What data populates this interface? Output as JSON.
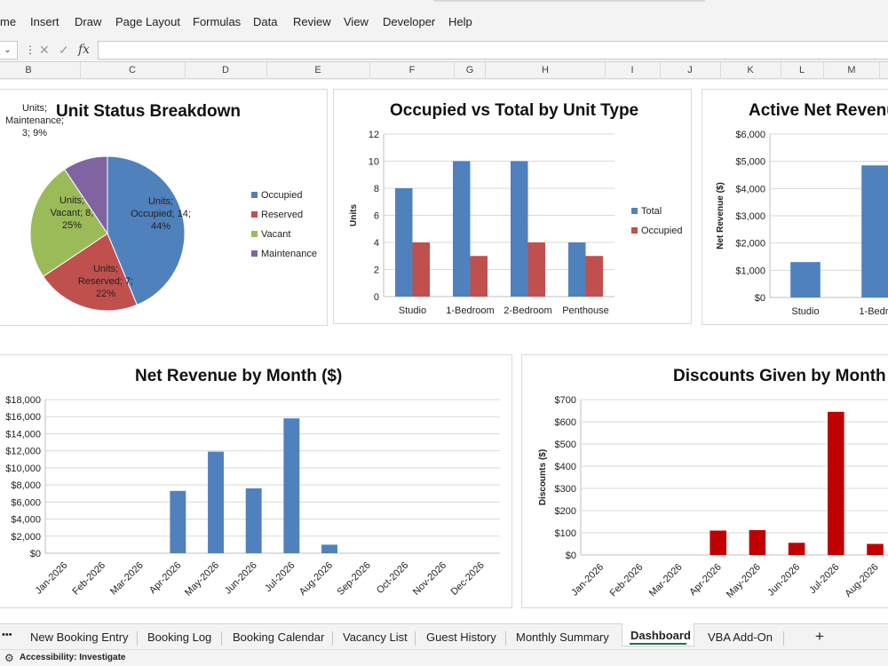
{
  "menu": [
    "me",
    "Insert",
    "Draw",
    "Page Layout",
    "Formulas",
    "Data",
    "Review",
    "View",
    "Developer",
    "Help"
  ],
  "formula_bar": {
    "fx_label": "fx",
    "value": ""
  },
  "columns": [
    "B",
    "C",
    "D",
    "E",
    "F",
    "G",
    "H",
    "I",
    "J",
    "K",
    "L",
    "M"
  ],
  "charts": {
    "unit_status": {
      "title": "Unit Status Breakdown",
      "chart_data": {
        "type": "pie",
        "title": "Unit Status Breakdown",
        "slices": [
          {
            "name": "Occupied",
            "value": 14,
            "percent": "44%",
            "color": "#4F81BD",
            "label": [
              "Units;",
              "Occupied; 14;",
              "44%"
            ]
          },
          {
            "name": "Reserved",
            "value": 7,
            "percent": "22%",
            "color": "#C0504D",
            "label": [
              "Units;",
              "Reserved; 7;",
              "22%"
            ]
          },
          {
            "name": "Vacant",
            "value": 8,
            "percent": "25%",
            "color": "#9BBB59",
            "label": [
              "Units;",
              "Vacant; 8;",
              "25%"
            ]
          },
          {
            "name": "Maintenance",
            "value": 3,
            "percent": "9%",
            "color": "#8064A2",
            "label": [
              "Units;",
              "Maintenance;",
              "3; 9%"
            ]
          }
        ],
        "legend_position": "right"
      }
    },
    "occupied_total": {
      "title": "Occupied vs Total by Unit Type",
      "chart_data": {
        "type": "bar",
        "title": "Occupied vs Total by Unit Type",
        "categories": [
          "Studio",
          "1-Bedroom",
          "2-Bedroom",
          "Penthouse"
        ],
        "series": [
          {
            "name": "Total",
            "values": [
              8,
              10,
              10,
              4
            ],
            "color": "#4F81BD"
          },
          {
            "name": "Occupied",
            "values": [
              4,
              3,
              4,
              3
            ],
            "color": "#C0504D"
          }
        ],
        "ylabel": "Units",
        "ylim": [
          0,
          12
        ],
        "yticks": [
          "0",
          "2",
          "4",
          "6",
          "8",
          "10",
          "12"
        ],
        "grid": true,
        "legend_position": "right"
      }
    },
    "active_net_revenue": {
      "title": "Active Net Revenu",
      "chart_data": {
        "type": "bar",
        "title": "Active Net Revenu",
        "categories": [
          "Studio",
          "1-Bedro"
        ],
        "values": [
          1300,
          4850
        ],
        "color": "#4F81BD",
        "ylabel": "Net Revenue ($)",
        "ylim": [
          0,
          6000
        ],
        "yticks": [
          "$0",
          "$1,000",
          "$2,000",
          "$3,000",
          "$4,000",
          "$5,000",
          "$6,000"
        ],
        "grid": true
      }
    },
    "net_revenue_month": {
      "title": "Net Revenue by Month ($)",
      "chart_data": {
        "type": "bar",
        "title": "Net Revenue by Month ($)",
        "categories": [
          "Jan-2026",
          "Feb-2026",
          "Mar-2026",
          "Apr-2026",
          "May-2026",
          "Jun-2026",
          "Jul-2026",
          "Aug-2026",
          "Sep-2026",
          "Oct-2026",
          "Nov-2026",
          "Dec-2026"
        ],
        "values": [
          0,
          0,
          0,
          7300,
          11900,
          7600,
          15800,
          1000,
          0,
          0,
          0,
          0
        ],
        "color": "#4F81BD",
        "ylim": [
          0,
          18000
        ],
        "yticks": [
          "$0",
          "$2,000",
          "$4,000",
          "$6,000",
          "$8,000",
          "$10,000",
          "$12,000",
          "$14,000",
          "$16,000",
          "$18,000"
        ],
        "grid": true
      }
    },
    "discounts_month": {
      "title": "Discounts Given by Month",
      "chart_data": {
        "type": "bar",
        "title": "Discounts Given by Month",
        "categories": [
          "Jan-2026",
          "Feb-2026",
          "Mar-2026",
          "Apr-2026",
          "May-2026",
          "Jun-2026",
          "Jul-2026",
          "Aug-2026",
          "S"
        ],
        "values": [
          0,
          0,
          0,
          110,
          112,
          55,
          645,
          50,
          0
        ],
        "color": "#C00000",
        "ylabel": "Discounts ($)",
        "ylim": [
          0,
          700
        ],
        "yticks": [
          "$0",
          "$100",
          "$200",
          "$300",
          "$400",
          "$500",
          "$600",
          "$700"
        ],
        "grid": true
      }
    }
  },
  "sheet_tabs": [
    "New Booking Entry",
    "Booking Log",
    "Booking Calendar",
    "Vacancy List",
    "Guest History",
    "Monthly Summary",
    "Dashboard",
    "VBA Add-On"
  ],
  "active_tab": "Dashboard",
  "tab_overflow": "•••",
  "add_sheet": "+",
  "status": {
    "accessibility": "Accessibility: Investigate"
  }
}
